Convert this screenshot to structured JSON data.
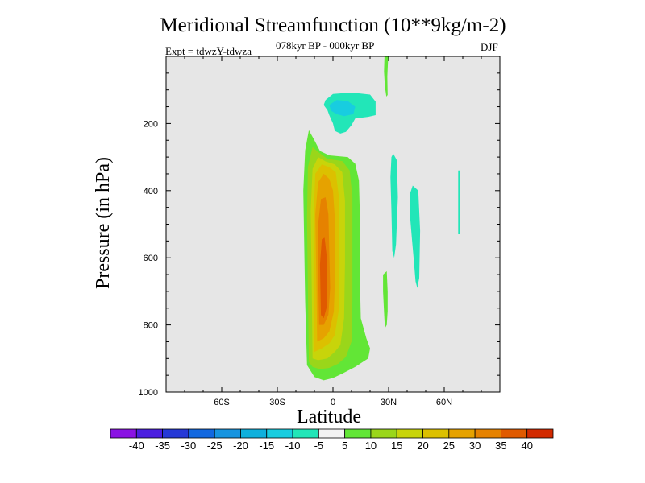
{
  "title": "Meridional Streamfunction (10**9kg/m-2)",
  "subtitle": "078kyr BP - 000kyr BP",
  "experiment": "Expt = tdwzY-tdwza",
  "season": "DJF",
  "chart_data": {
    "type": "heatmap",
    "title": "Meridional Streamfunction (10**9kg/m-2)",
    "xlabel": "Latitude",
    "ylabel": "Pressure (in hPa)",
    "xlim": [
      -90,
      90
    ],
    "ylim": [
      1000,
      0
    ],
    "x_ticks": [
      {
        "value": -60,
        "label": "60S"
      },
      {
        "value": -30,
        "label": "30S"
      },
      {
        "value": 0,
        "label": "0"
      },
      {
        "value": 30,
        "label": "30N"
      },
      {
        "value": 60,
        "label": "60N"
      }
    ],
    "y_ticks": [
      {
        "value": 200,
        "label": "200"
      },
      {
        "value": 400,
        "label": "400"
      },
      {
        "value": 600,
        "label": "600"
      },
      {
        "value": 800,
        "label": "800"
      },
      {
        "value": 1000,
        "label": "1000"
      }
    ],
    "background": "#e6e6e6",
    "colorbar": {
      "colors": [
        "#8a12e3",
        "#4b1ee0",
        "#2639d6",
        "#1268e0",
        "#1794e0",
        "#0fb0dc",
        "#18cde0",
        "#22e6b8",
        "#f2f2f2",
        "#62e636",
        "#9ad61a",
        "#c8d40a",
        "#dcc000",
        "#e6a200",
        "#e68200",
        "#e05a00",
        "#d22a00"
      ],
      "labels": [
        "-40",
        "-35",
        "-30",
        "-25",
        "-20",
        "-15",
        "-10",
        "-5",
        "5",
        "10",
        "15",
        "20",
        "25",
        "30",
        "35",
        "40"
      ]
    },
    "features": [
      {
        "name": "main-positive-cell",
        "level": 5,
        "points": [
          [
            -14,
            920
          ],
          [
            -15,
            730
          ],
          [
            -15.5,
            570
          ],
          [
            -16,
            400
          ],
          [
            -15,
            280
          ],
          [
            -13,
            220
          ],
          [
            -10,
            250
          ],
          [
            -7,
            282
          ],
          [
            -2,
            295
          ],
          [
            8,
            300
          ],
          [
            12,
            320
          ],
          [
            14,
            370
          ],
          [
            14.5,
            480
          ],
          [
            14.5,
            660
          ],
          [
            15,
            780
          ],
          [
            18,
            840
          ],
          [
            20,
            870
          ],
          [
            19,
            900
          ],
          [
            12,
            925
          ],
          [
            5,
            945
          ],
          [
            0,
            958
          ],
          [
            -5,
            965
          ],
          [
            -10,
            955
          ]
        ]
      },
      {
        "name": "main-positive-cell",
        "level": 10,
        "points": [
          [
            -13,
            910
          ],
          [
            -13.5,
            700
          ],
          [
            -14,
            480
          ],
          [
            -13.5,
            330
          ],
          [
            -11,
            270
          ],
          [
            -8,
            285
          ],
          [
            -3,
            305
          ],
          [
            5,
            312
          ],
          [
            9,
            340
          ],
          [
            10.5,
            420
          ],
          [
            10.5,
            560
          ],
          [
            10.5,
            730
          ],
          [
            10,
            850
          ],
          [
            7,
            895
          ],
          [
            3,
            915
          ],
          [
            -2,
            928
          ],
          [
            -7,
            932
          ],
          [
            -11,
            925
          ]
        ]
      },
      {
        "name": "main-positive-cell",
        "level": 15,
        "points": [
          [
            -11,
            900
          ],
          [
            -11.5,
            680
          ],
          [
            -12,
            460
          ],
          [
            -11,
            335
          ],
          [
            -8,
            300
          ],
          [
            -4,
            313
          ],
          [
            1,
            322
          ],
          [
            5,
            345
          ],
          [
            6.5,
            430
          ],
          [
            6.5,
            620
          ],
          [
            6,
            780
          ],
          [
            4,
            860
          ],
          [
            1,
            880
          ],
          [
            -3,
            900
          ],
          [
            -8,
            905
          ]
        ]
      },
      {
        "name": "main-positive-cell",
        "level": 20,
        "points": [
          [
            -10,
            880
          ],
          [
            -10.5,
            680
          ],
          [
            -10.5,
            480
          ],
          [
            -9.5,
            350
          ],
          [
            -6,
            322
          ],
          [
            -2,
            330
          ],
          [
            1.5,
            345
          ],
          [
            3.2,
            420
          ],
          [
            3.5,
            620
          ],
          [
            3,
            760
          ],
          [
            1,
            830
          ],
          [
            -2,
            855
          ],
          [
            -6,
            870
          ]
        ]
      },
      {
        "name": "main-positive-cell",
        "level": 25,
        "points": [
          [
            -8.5,
            850
          ],
          [
            -9,
            650
          ],
          [
            -9.5,
            470
          ],
          [
            -8,
            375
          ],
          [
            -5,
            350
          ],
          [
            -2,
            365
          ],
          [
            0,
            400
          ],
          [
            1.2,
            500
          ],
          [
            1.2,
            640
          ],
          [
            0.5,
            760
          ],
          [
            -2,
            820
          ],
          [
            -5,
            840
          ]
        ]
      },
      {
        "name": "main-positive-cell",
        "level": 30,
        "points": [
          [
            -7.5,
            800
          ],
          [
            -8,
            640
          ],
          [
            -8,
            500
          ],
          [
            -6.5,
            425
          ],
          [
            -4,
            420
          ],
          [
            -2.5,
            470
          ],
          [
            -2,
            580
          ],
          [
            -1.5,
            690
          ],
          [
            -2.5,
            770
          ],
          [
            -5,
            800
          ]
        ]
      },
      {
        "name": "main-positive-cell",
        "level": 35,
        "points": [
          [
            -6.5,
            770
          ],
          [
            -7,
            620
          ],
          [
            -6,
            545
          ],
          [
            -4.5,
            540
          ],
          [
            -3.5,
            590
          ],
          [
            -3.2,
            680
          ],
          [
            -3.5,
            750
          ],
          [
            -5,
            780
          ]
        ]
      },
      {
        "name": "upper-negative-cell",
        "level": -5,
        "points": [
          [
            -4,
            130
          ],
          [
            0,
            112
          ],
          [
            10,
            108
          ],
          [
            20,
            114
          ],
          [
            23,
            135
          ],
          [
            23,
            175
          ],
          [
            19,
            180
          ],
          [
            12,
            185
          ],
          [
            10,
            205
          ],
          [
            7,
            225
          ],
          [
            4,
            230
          ],
          [
            1,
            222
          ],
          [
            0,
            200
          ],
          [
            -2,
            175
          ],
          [
            -3,
            160
          ],
          [
            -5,
            145
          ]
        ]
      },
      {
        "name": "upper-negative-cell",
        "level": -10,
        "points": [
          [
            -2,
            145
          ],
          [
            2,
            130
          ],
          [
            8,
            133
          ],
          [
            12,
            150
          ],
          [
            11,
            172
          ],
          [
            6,
            178
          ],
          [
            2,
            172
          ],
          [
            -1,
            162
          ]
        ]
      },
      {
        "name": "negative-band",
        "level": -5,
        "points": [
          [
            31.5,
            300
          ],
          [
            32.5,
            290
          ],
          [
            34.5,
            310
          ],
          [
            35,
            420
          ],
          [
            34,
            560
          ],
          [
            33,
            600
          ],
          [
            32,
            580
          ],
          [
            31.5,
            460
          ],
          [
            31,
            360
          ]
        ]
      },
      {
        "name": "negative-band",
        "level": -5,
        "points": [
          [
            41.5,
            410
          ],
          [
            43,
            385
          ],
          [
            46,
            400
          ],
          [
            47,
            520
          ],
          [
            46.5,
            660
          ],
          [
            45.5,
            690
          ],
          [
            44.5,
            670
          ],
          [
            43.5,
            600
          ],
          [
            42.5,
            540
          ],
          [
            41.5,
            470
          ]
        ]
      },
      {
        "name": "negative-band",
        "level": -5,
        "points": [
          [
            67.5,
            340
          ],
          [
            68.5,
            340
          ],
          [
            68.5,
            530
          ],
          [
            67.5,
            530
          ]
        ]
      },
      {
        "name": "upper-positive-strip",
        "level": 5,
        "points": [
          [
            27.8,
            0
          ],
          [
            29.8,
            0
          ],
          [
            29.3,
            60
          ],
          [
            29.5,
            115
          ],
          [
            28.8,
            120
          ],
          [
            28,
            90
          ],
          [
            27.5,
            45
          ]
        ]
      },
      {
        "name": "lower-positive-tail",
        "level": 5,
        "points": [
          [
            27,
            650
          ],
          [
            29,
            640
          ],
          [
            29.5,
            700
          ],
          [
            29.5,
            760
          ],
          [
            29,
            800
          ],
          [
            28,
            810
          ],
          [
            27.5,
            760
          ],
          [
            27,
            700
          ]
        ]
      }
    ]
  }
}
